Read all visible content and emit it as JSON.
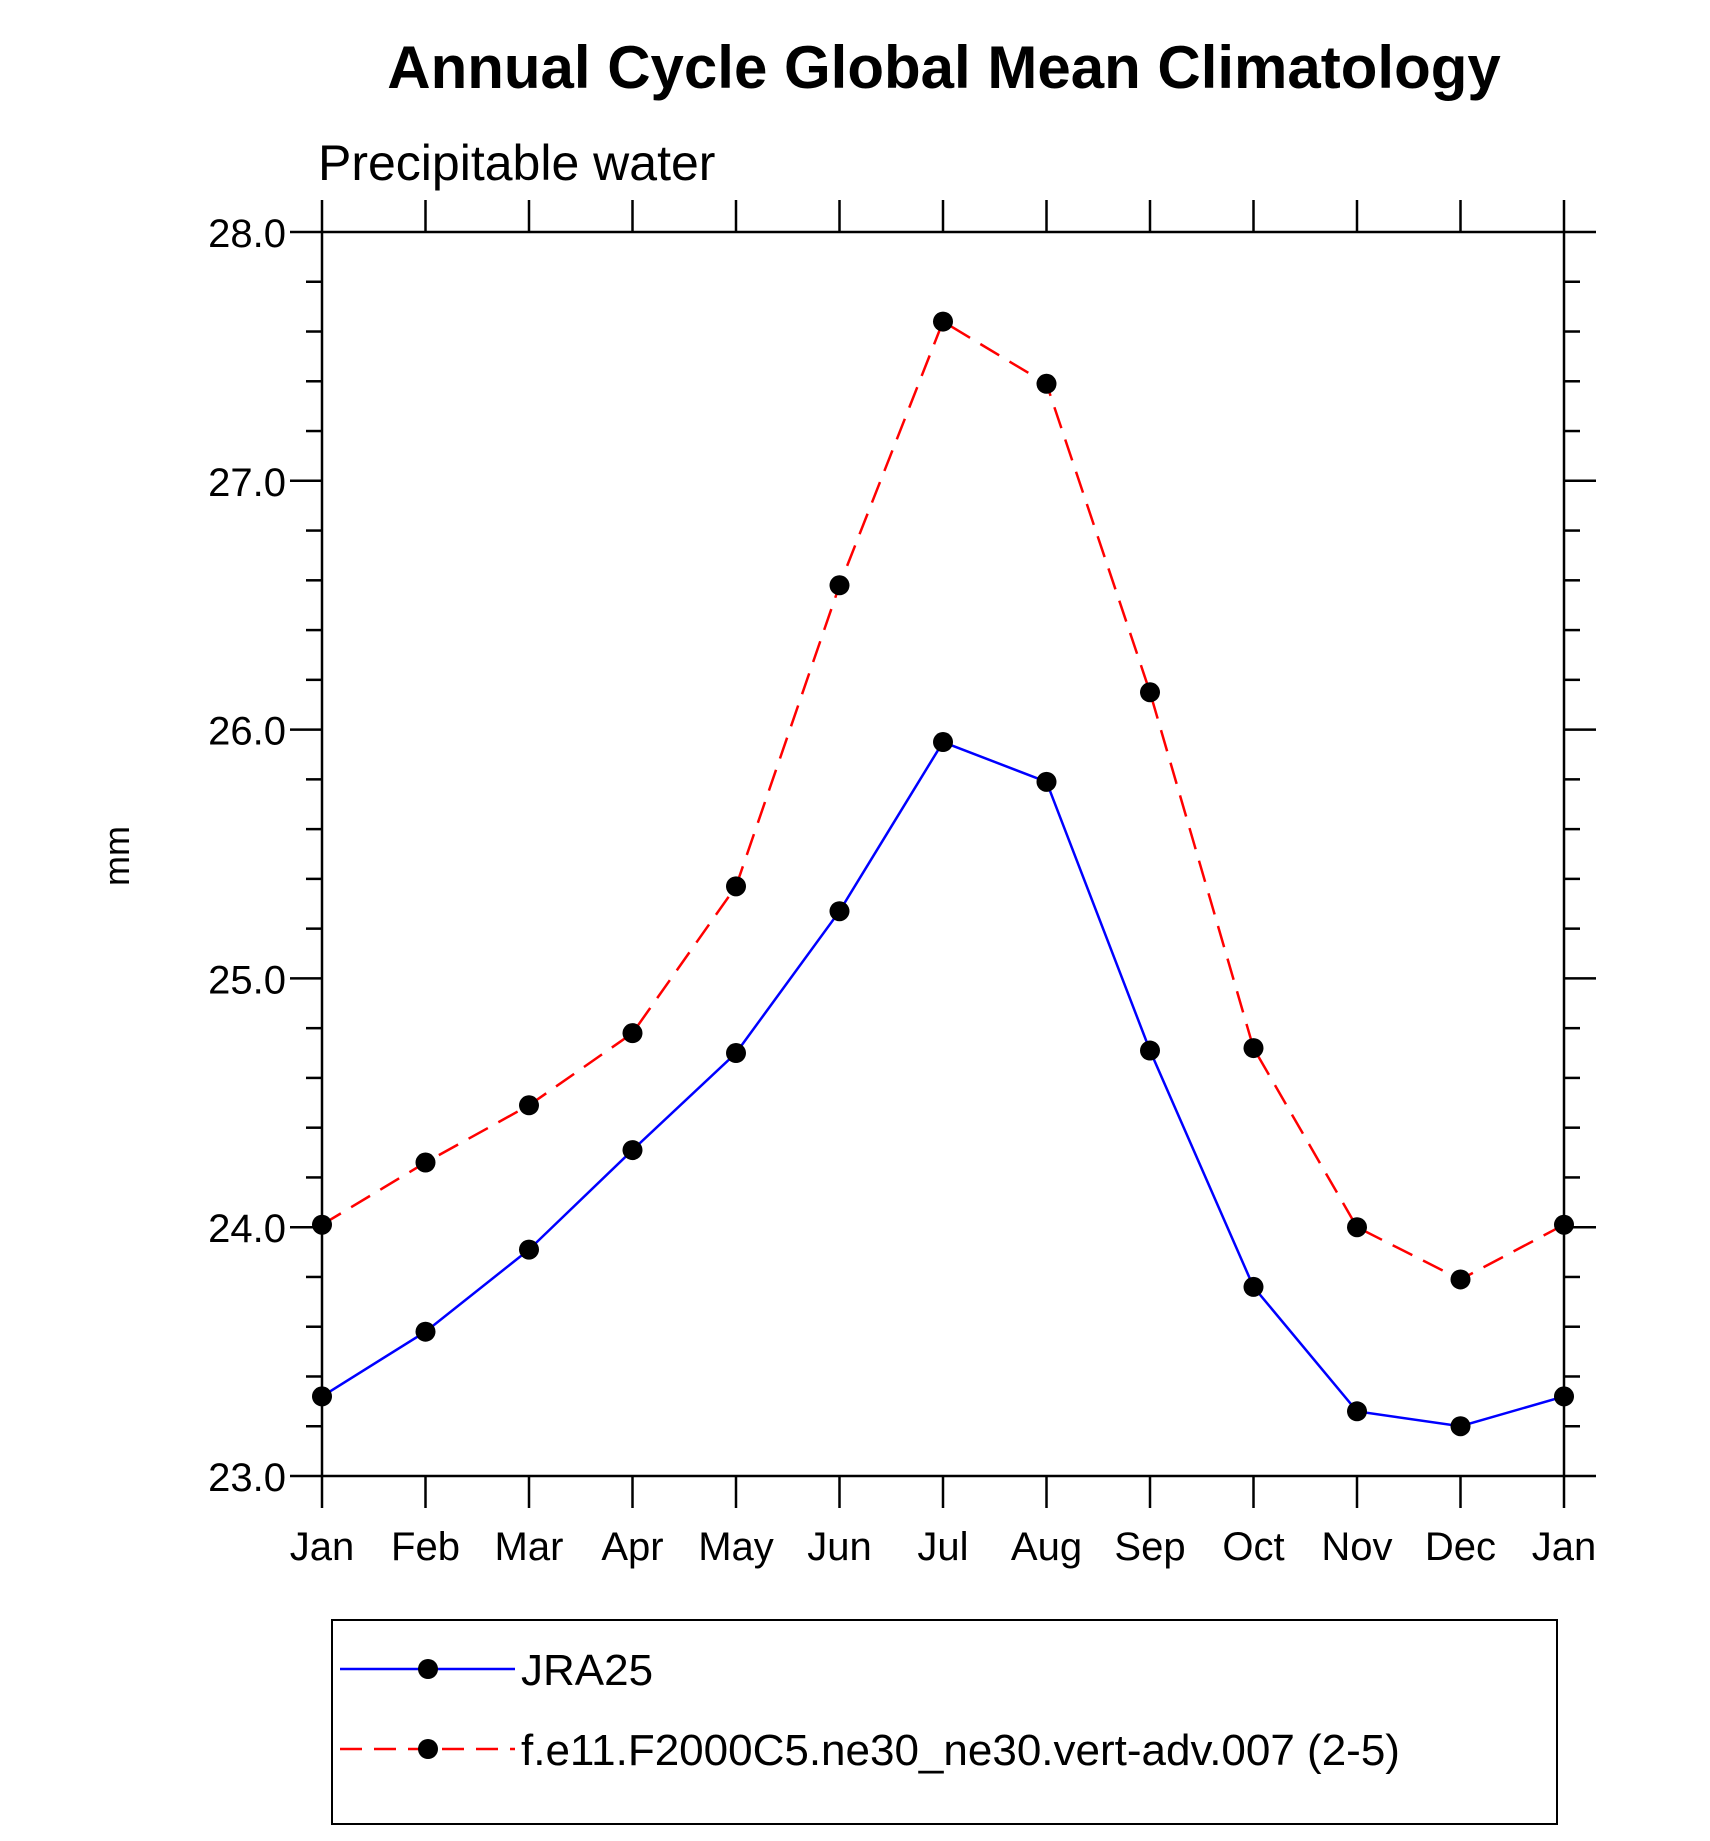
{
  "chart_data": {
    "type": "line",
    "title": "Annual Cycle Global Mean Climatology",
    "subtitle": "Precipitable water",
    "xlabel": "",
    "ylabel": "mm",
    "categories": [
      "Jan",
      "Feb",
      "Mar",
      "Apr",
      "May",
      "Jun",
      "Jul",
      "Aug",
      "Sep",
      "Oct",
      "Nov",
      "Dec",
      "Jan"
    ],
    "ylim": [
      23.0,
      28.0
    ],
    "yticks": [
      "23.0",
      "24.0",
      "25.0",
      "26.0",
      "27.0",
      "28.0"
    ],
    "grid": false,
    "legend_position": "bottom",
    "series": [
      {
        "name": "JRA25",
        "color": "#0000ff",
        "line_style": "solid",
        "marker": "filled-circle",
        "values": [
          23.32,
          23.58,
          23.91,
          24.31,
          24.7,
          25.27,
          25.95,
          25.79,
          24.71,
          23.76,
          23.26,
          23.2,
          23.32
        ]
      },
      {
        "name": "f.e11.F2000C5.ne30_ne30.vert-adv.007 (2-5)",
        "color": "#ff0000",
        "line_style": "dashed",
        "marker": "filled-circle",
        "values": [
          24.01,
          24.26,
          24.49,
          24.78,
          25.37,
          26.58,
          27.64,
          27.39,
          26.15,
          24.72,
          24.0,
          23.79,
          24.01
        ]
      }
    ]
  }
}
